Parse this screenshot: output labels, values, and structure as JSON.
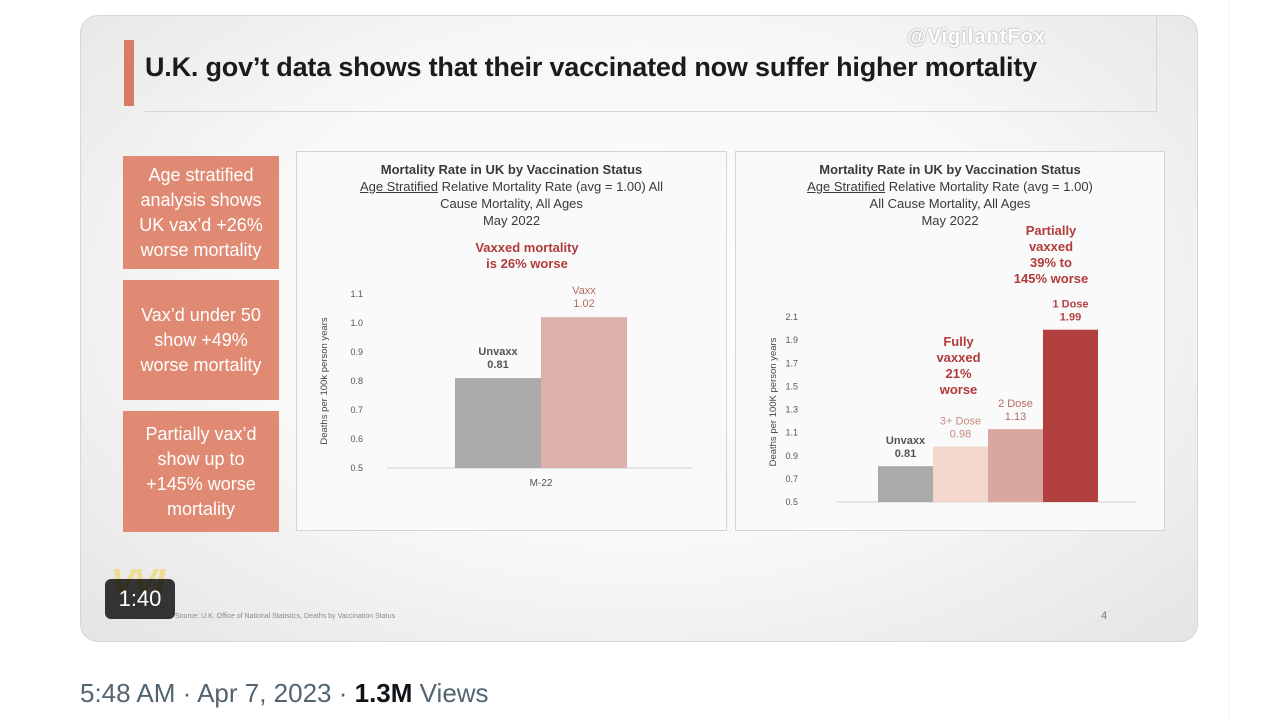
{
  "slide": {
    "title": "U.K. gov’t data shows that their vaccinated now suffer higher mortality",
    "watermark": "@VigilantFox",
    "side_boxes": [
      "Age stratified analysis shows UK vax’d +26% worse mortality",
      "Vax’d under 50 show +49% worse mortality",
      "Partially vax’d show up to +145% worse mortality"
    ],
    "logo": "VVI",
    "source": "Source: U.K. Office of National Statistics, Deaths by Vaccination Status",
    "page_number": "4",
    "accent": "#d97a66"
  },
  "video": {
    "duration": "1:40"
  },
  "tweet_meta": {
    "time": "5:48 AM",
    "date": "Apr 7, 2023",
    "views_count": "1.3M",
    "views_label": "Views",
    "separator": " · "
  },
  "left_chart": {
    "title_line1": "Mortality Rate in UK by Vaccination Status",
    "title_underlined": "Age Stratified",
    "title_line2_rest": " Relative Mortality Rate (avg = 1.00) All",
    "title_line3": "Cause Mortality, All Ages",
    "title_line4": "May 2022",
    "annotation_line1": "Vaxxed  mortality",
    "annotation_line2": "is 26% worse"
  },
  "right_chart": {
    "title_line1": "Mortality Rate in UK by Vaccination Status",
    "title_underlined": "Age Stratified",
    "title_line2_rest": " Relative Mortality Rate (avg = 1.00)",
    "title_line3": "All Cause Mortality, All Ages",
    "title_line4": "May 2022",
    "annotation_full": [
      "Fully",
      "vaxxed",
      "21%",
      "worse"
    ],
    "annotation_partial": [
      "Partially",
      "vaxxed",
      "39% to",
      "145% worse"
    ]
  },
  "chart_data": [
    {
      "type": "bar",
      "title": "Mortality Rate in UK by Vaccination Status",
      "ylabel": "Deaths per 100k person years",
      "categories": [
        "M-22"
      ],
      "series": [
        {
          "name": "Unvaxx",
          "values": [
            0.81
          ],
          "color": "#aaaaaa"
        },
        {
          "name": "Vaxx",
          "values": [
            1.02
          ],
          "color": "#dcb1ab"
        }
      ],
      "ylim": [
        0.5,
        1.1
      ],
      "yticks": [
        "1.1",
        "1.0",
        "0.9",
        "0.8",
        "0.7",
        "0.6",
        "0.5"
      ]
    },
    {
      "type": "bar",
      "title": "Mortality Rate in UK by Vaccination Status",
      "ylabel": "Deaths per 100K person years",
      "categories": [
        "Unvaxx",
        "3+ Dose",
        "2 Dose",
        "1 Dose"
      ],
      "values": [
        0.81,
        0.98,
        1.13,
        1.99
      ],
      "colors": [
        "#aaaaaa",
        "#f3d7cd",
        "#d9a6a0",
        "#b2403e"
      ],
      "ylim": [
        0.5,
        2.1
      ],
      "yticks": [
        "2.1",
        "1.9",
        "1.7",
        "1.5",
        "1.3",
        "1.1",
        "0.9",
        "0.7",
        "0.5"
      ]
    }
  ]
}
